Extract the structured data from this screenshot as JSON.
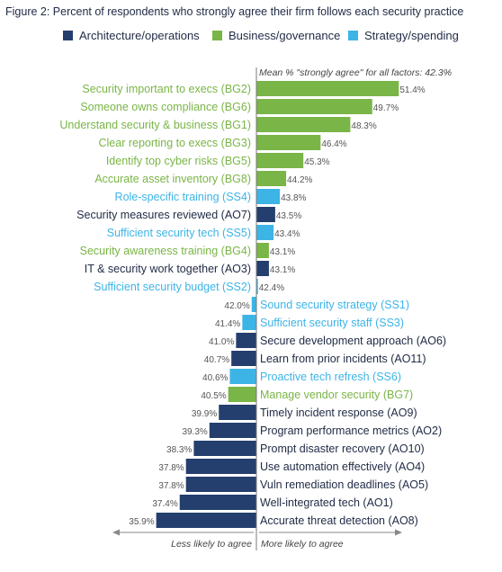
{
  "figure_title": "Figure 2: Percent of respondents who strongly agree their firm follows each security practice",
  "legend": [
    {
      "name": "Architecture/operations",
      "color": "#243f6e"
    },
    {
      "name": "Business/governance",
      "color": "#7ab547"
    },
    {
      "name": "Strategy/spending",
      "color": "#3db4e6"
    }
  ],
  "chart_data": {
    "type": "bar",
    "orientation": "horizontal",
    "title": "Figure 2: Percent of respondents who strongly agree their firm follows each security practice",
    "baseline": 42.3,
    "mean_annotation": "Mean % \"strongly agree\" for all factors: 42.3%",
    "left_direction_label": "Less likely to agree",
    "right_direction_label": "More likely to agree",
    "xlim": [
      35.5,
      52
    ],
    "colors": {
      "AO": "#243f6e",
      "BG": "#7ab547",
      "SS": "#3db4e6"
    },
    "bars": [
      {
        "label": "Security important to execs (BG2)",
        "value": 51.4,
        "value_label": "51.4%",
        "group": "BG"
      },
      {
        "label": "Someone owns compliance (BG6)",
        "value": 49.7,
        "value_label": "49.7%",
        "group": "BG"
      },
      {
        "label": "Understand security & business (BG1)",
        "value": 48.3,
        "value_label": "48.3%",
        "group": "BG"
      },
      {
        "label": "Clear reporting to execs (BG3)",
        "value": 46.4,
        "value_label": "46.4%",
        "group": "BG"
      },
      {
        "label": "Identify top cyber risks (BG5)",
        "value": 45.3,
        "value_label": "45.3%",
        "group": "BG"
      },
      {
        "label": "Accurate asset inventory (BG8)",
        "value": 44.2,
        "value_label": "44.2%",
        "group": "BG"
      },
      {
        "label": "Role-specific training (SS4)",
        "value": 43.8,
        "value_label": "43.8%",
        "group": "SS"
      },
      {
        "label": "Security measures reviewed (AO7)",
        "value": 43.5,
        "value_label": "43.5%",
        "group": "AO"
      },
      {
        "label": "Sufficient security tech (SS5)",
        "value": 43.4,
        "value_label": "43.4%",
        "group": "SS"
      },
      {
        "label": "Security awareness training (BG4)",
        "value": 43.1,
        "value_label": "43.1%",
        "group": "BG"
      },
      {
        "label": "IT & security work together (AO3)",
        "value": 43.1,
        "value_label": "43.1%",
        "group": "AO"
      },
      {
        "label": "Sufficient security budget (SS2)",
        "value": 42.4,
        "value_label": "42.4%",
        "group": "SS"
      },
      {
        "label": "Sound security strategy (SS1)",
        "value": 42.0,
        "value_label": "42.0%",
        "group": "SS"
      },
      {
        "label": "Sufficient security staff (SS3)",
        "value": 41.4,
        "value_label": "41.4%",
        "group": "SS"
      },
      {
        "label": "Secure development approach (AO6)",
        "value": 41.0,
        "value_label": "41.0%",
        "group": "AO"
      },
      {
        "label": "Learn from prior incidents (AO11)",
        "value": 40.7,
        "value_label": "40.7%",
        "group": "AO"
      },
      {
        "label": "Proactive tech refresh (SS6)",
        "value": 40.6,
        "value_label": "40.6%",
        "group": "SS"
      },
      {
        "label": "Manage vendor security (BG7)",
        "value": 40.5,
        "value_label": "40.5%",
        "group": "BG"
      },
      {
        "label": "Timely incident response (AO9)",
        "value": 39.9,
        "value_label": "39.9%",
        "group": "AO"
      },
      {
        "label": "Program performance metrics (AO2)",
        "value": 39.3,
        "value_label": "39.3%",
        "group": "AO"
      },
      {
        "label": "Prompt disaster recovery (AO10)",
        "value": 38.3,
        "value_label": "38.3%",
        "group": "AO"
      },
      {
        "label": "Use automation effectively (AO4)",
        "value": 37.8,
        "value_label": "37.8%",
        "group": "AO"
      },
      {
        "label": "Vuln remediation deadlines (AO5)",
        "value": 37.8,
        "value_label": "37.8%",
        "group": "AO"
      },
      {
        "label": "Well-integrated tech (AO1)",
        "value": 37.4,
        "value_label": "37.4%",
        "group": "AO"
      },
      {
        "label": "Accurate threat detection (AO8)",
        "value": 35.9,
        "value_label": "35.9%",
        "group": "AO"
      }
    ]
  }
}
